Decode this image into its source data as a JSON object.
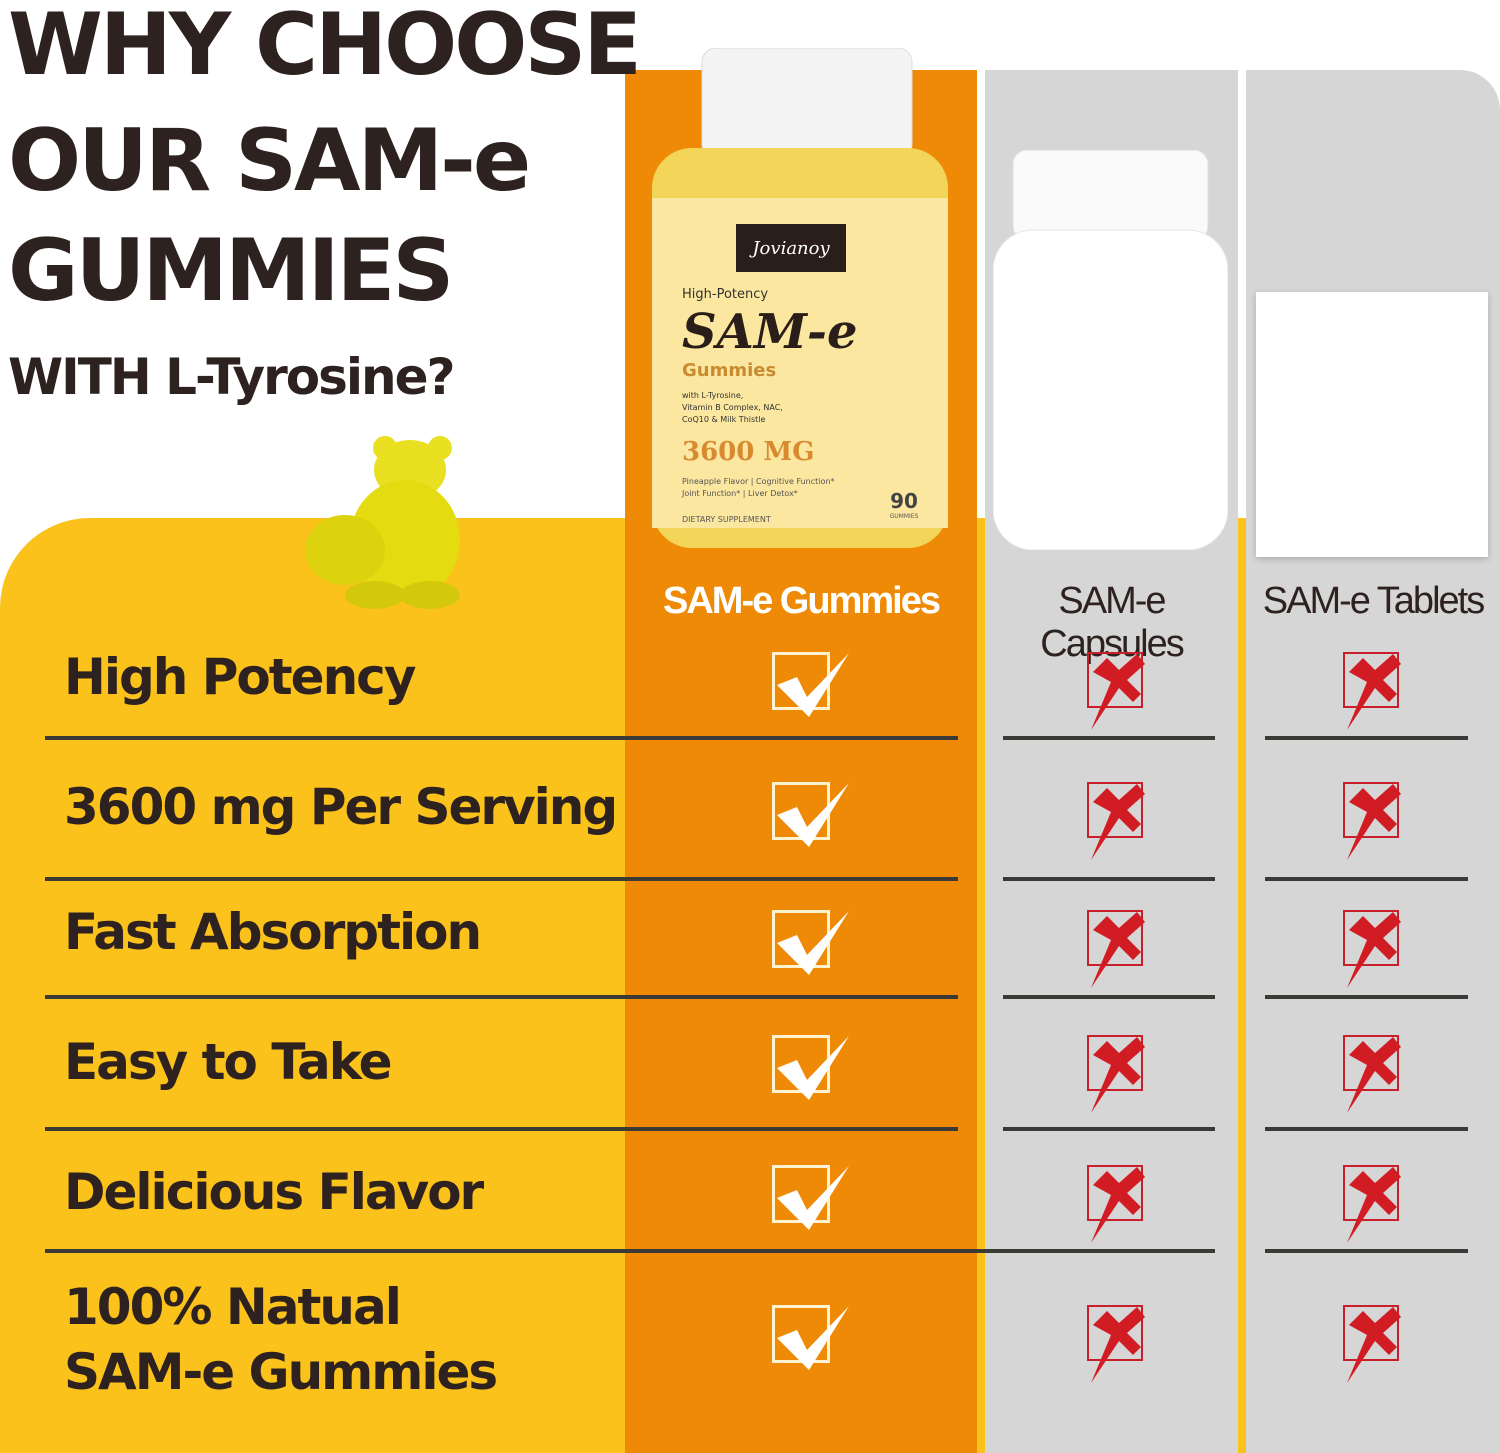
{
  "heading": {
    "line1": "WHY CHOOSE",
    "line2": "OUR SAM-e",
    "line3": "GUMMIES",
    "line4": "WITH L-Tyrosine?"
  },
  "product_label": {
    "brand": "Jovianoy",
    "tagline": "High-Potency",
    "name": "SAM-e",
    "form": "Gummies",
    "ingredients": "with L-Tyrosine, Vitamin B Complex, NAC, CoQ10 & Milk Thistle",
    "dose": "3600 MG",
    "benefits": "Pineapple Flavor | Cognitive Function* Joint Function* | Liver Detox*",
    "type": "DIETARY SUPPLEMENT",
    "count": "90",
    "count_unit": "GUMMIES"
  },
  "columns": [
    "SAM-e Gummies",
    "SAM-e Capsules",
    "SAM-e Tablets"
  ],
  "features": [
    {
      "label": "High Potency",
      "values": [
        true,
        false,
        false
      ]
    },
    {
      "label": "3600 mg Per Serving",
      "values": [
        true,
        false,
        false
      ]
    },
    {
      "label": "Fast Absorption",
      "values": [
        true,
        false,
        false
      ]
    },
    {
      "label": "Easy to Take",
      "values": [
        true,
        false,
        false
      ]
    },
    {
      "label": "Delicious Flavor",
      "values": [
        true,
        false,
        false
      ]
    },
    {
      "label": "100% Natual SAM-e Gummies",
      "values": [
        true,
        false,
        false
      ]
    }
  ],
  "colors": {
    "yellow": "#fbc21c",
    "orange": "#ef8a06",
    "gray": "#d6d6d6",
    "text": "#2e2220",
    "cross": "#c8202a"
  }
}
